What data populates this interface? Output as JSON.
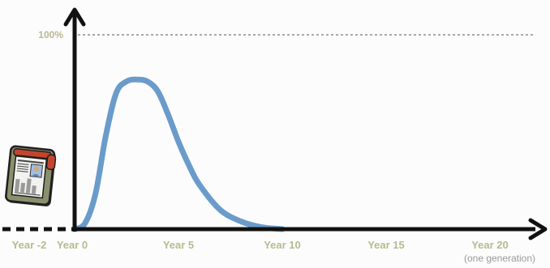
{
  "chart_data": {
    "type": "line",
    "title": "",
    "xlabel": "",
    "ylabel": "",
    "xlim": [
      -2,
      20.8
    ],
    "ylim": [
      0,
      100
    ],
    "grid": false,
    "x_ticks": [
      {
        "value": -2,
        "label": "Year -2"
      },
      {
        "value": 0,
        "label": "Year 0"
      },
      {
        "value": 5,
        "label": "Year 5"
      },
      {
        "value": 10,
        "label": "Year 10"
      },
      {
        "value": 15,
        "label": "Year 15"
      },
      {
        "value": 20,
        "label": "Year 20",
        "sublabel": "(one generation)"
      }
    ],
    "reference_line": {
      "value": 100,
      "label": "100%",
      "style": "dashed"
    },
    "series": [
      {
        "x": [
          0,
          0.5,
          1,
          1.5,
          2,
          2.5,
          3,
          3.5,
          4,
          4.5,
          5,
          5.5,
          6,
          7,
          8,
          9,
          10
        ],
        "y": [
          0,
          3,
          18,
          48,
          70,
          76,
          77,
          76,
          71,
          59,
          45,
          33,
          23,
          10,
          4,
          1,
          0
        ],
        "color": "#6a9bcb"
      }
    ],
    "colors": {
      "axis": "#111111",
      "tick_label": "#b8ba91",
      "sublabel": "#9a9a9a",
      "reference": "#555555"
    },
    "icon": "newspaper-icon"
  }
}
